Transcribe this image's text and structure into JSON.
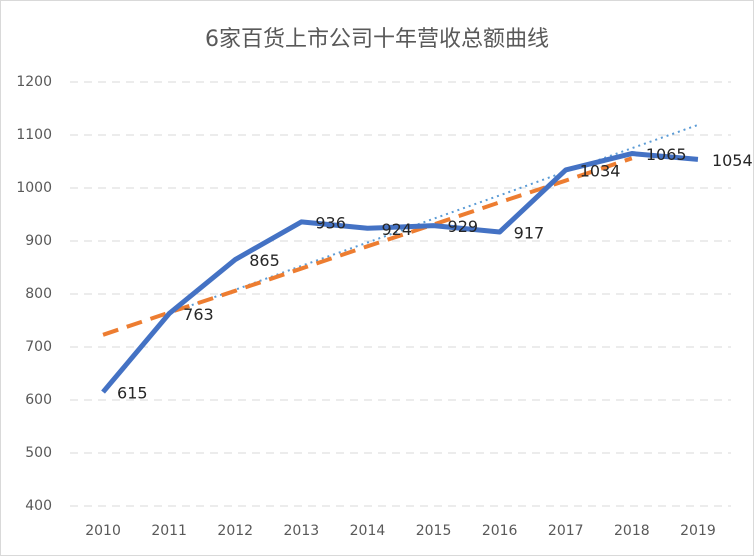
{
  "chart_data": {
    "type": "line",
    "title": "6家百货上市公司十年营收总额曲线",
    "categories": [
      "2010",
      "2011",
      "2012",
      "2013",
      "2014",
      "2015",
      "2016",
      "2017",
      "2018",
      "2019"
    ],
    "series": [
      {
        "color": "#4472c4",
        "values": [
          615,
          763,
          865,
          936,
          924,
          929,
          917,
          1034,
          1065,
          1054
        ],
        "labels": true,
        "style": "solid",
        "width": 5
      },
      {
        "color": "#ed7d31",
        "values": [
          723,
          765,
          806,
          848,
          890,
          931,
          973,
          1014,
          1056,
          null
        ],
        "labels": false,
        "style": "dash",
        "width": 4
      },
      {
        "color": "#5b9bd5",
        "values": [
          null,
          764,
          808,
          853,
          897,
          942,
          986,
          1031,
          1075,
          1119
        ],
        "labels": false,
        "style": "dot",
        "width": 2
      }
    ],
    "ylim": [
      400,
      1200
    ],
    "yticks": [
      400,
      500,
      600,
      700,
      800,
      900,
      1000,
      1100,
      1200
    ],
    "grid": true
  }
}
